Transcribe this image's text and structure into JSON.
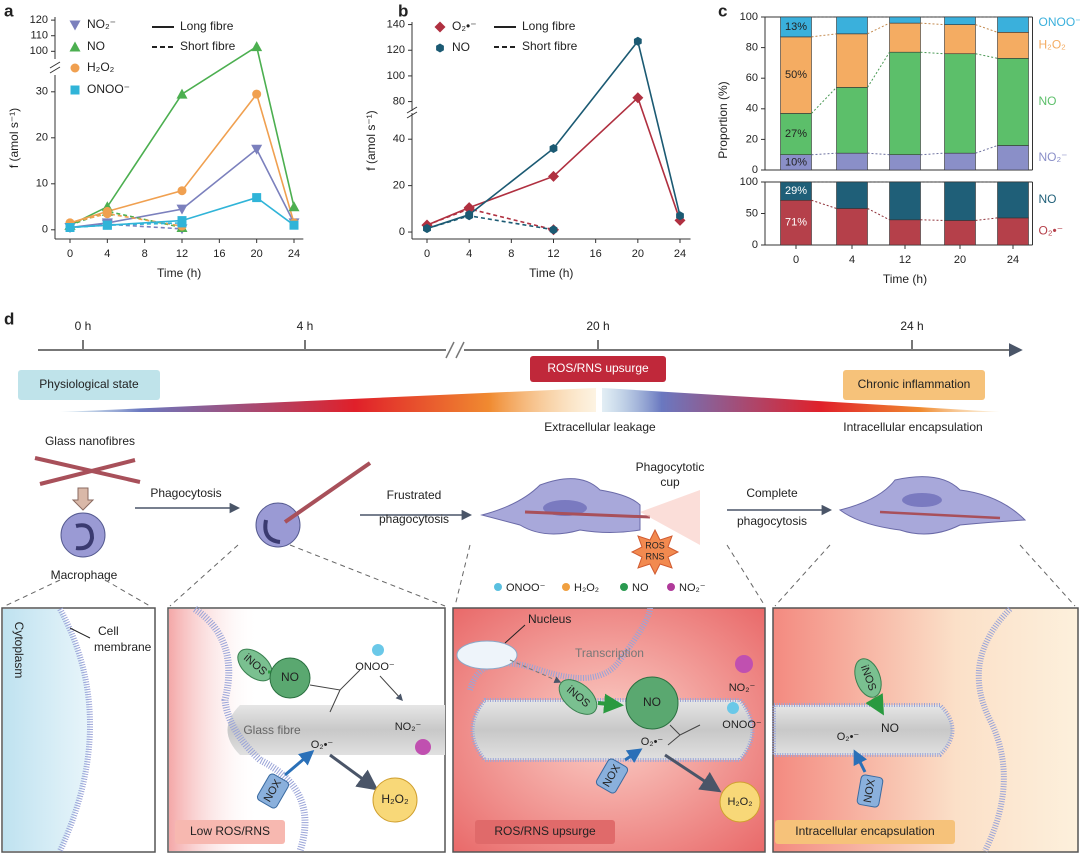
{
  "chart_data": [
    {
      "type": "line",
      "label": "a",
      "y_label": "f (amol s⁻¹)",
      "x_label": "Time (h)",
      "x": [
        0,
        4,
        12,
        20,
        24
      ],
      "xlim": [
        -1,
        25
      ],
      "xticks": [
        0,
        4,
        8,
        12,
        16,
        20,
        24
      ],
      "ylim": [
        -2,
        122
      ],
      "ybreak": [
        33,
        97
      ],
      "yticks": [
        0,
        10,
        20,
        30,
        100,
        110,
        120
      ],
      "line_styles": [
        "Long fibre",
        "Short fibre"
      ],
      "series": [
        {
          "name": "NO₂⁻",
          "color": "#7b80bd",
          "marker": "triangle-down",
          "values": [
            0.5,
            1.5,
            4.5,
            17.5,
            1.5
          ],
          "short_values": [
            0.5,
            1.2,
            0.2,
            null,
            null
          ]
        },
        {
          "name": "NO",
          "color": "#4caf50",
          "marker": "triangle-up",
          "values": [
            1,
            5,
            29.5,
            103,
            5
          ],
          "short_values": [
            1,
            4,
            0.5,
            null,
            null
          ]
        },
        {
          "name": "H₂O₂",
          "color": "#f0a050",
          "marker": "circle",
          "values": [
            1.5,
            4,
            8.5,
            29.5,
            1.5
          ],
          "short_values": [
            1.5,
            3.5,
            0.8,
            null,
            null
          ]
        },
        {
          "name": "ONOO⁻",
          "color": "#30b4d8",
          "marker": "square",
          "values": [
            0.5,
            1,
            2,
            7,
            1
          ],
          "short_values": [
            0.5,
            1,
            1.5,
            null,
            null
          ]
        }
      ]
    },
    {
      "type": "line",
      "label": "b",
      "y_label": "f (amol s⁻¹)",
      "x_label": "Time (h)",
      "x": [
        0,
        4,
        12,
        20,
        24
      ],
      "xlim": [
        -1,
        25
      ],
      "xticks": [
        0,
        4,
        8,
        12,
        16,
        20,
        24
      ],
      "ylim": [
        -3,
        142
      ],
      "ybreak": [
        50,
        75
      ],
      "yticks": [
        0,
        20,
        40,
        80,
        100,
        120,
        140
      ],
      "line_styles": [
        "Long fibre",
        "Short fibre"
      ],
      "series": [
        {
          "name": "O₂•⁻",
          "color": "#b03040",
          "marker": "diamond",
          "values": [
            3,
            10.5,
            24,
            83,
            5
          ],
          "short_values": [
            3,
            10,
            1,
            null,
            null
          ]
        },
        {
          "name": "NO",
          "color": "#1b5a73",
          "marker": "hexagon",
          "values": [
            1.5,
            7.5,
            36,
            127,
            7
          ],
          "short_values": [
            1.5,
            7,
            1,
            null,
            null
          ]
        }
      ]
    },
    {
      "type": "stacked_bar",
      "label": "c",
      "y_label": "Proportion (%)",
      "ylim": [
        0,
        100
      ],
      "yticks": [
        0,
        20,
        40,
        60,
        80,
        100
      ],
      "series": [
        {
          "name": "NO₂⁻",
          "color": "#8a8fc8",
          "values": [
            10,
            11,
            10,
            11,
            16
          ],
          "value_labels": [
            "10%",
            null,
            null,
            null,
            null
          ]
        },
        {
          "name": "NO",
          "color": "#5cbf6a",
          "values": [
            27,
            43,
            67,
            65,
            57
          ],
          "value_labels": [
            "27%",
            null,
            null,
            null,
            null
          ]
        },
        {
          "name": "H₂O₂",
          "color": "#f4ac62",
          "values": [
            50,
            35,
            19,
            19,
            17
          ],
          "value_labels": [
            "50%",
            null,
            null,
            null,
            null
          ]
        },
        {
          "name": "ONOO⁻",
          "color": "#3ab0dc",
          "values": [
            13,
            11,
            4,
            5,
            10
          ],
          "value_labels": [
            "13%",
            null,
            null,
            null,
            null
          ]
        }
      ]
    },
    {
      "type": "stacked_bar",
      "x_label": "Time (h)",
      "categories": [
        "0",
        "4",
        "12",
        "20",
        "24"
      ],
      "ylim": [
        0,
        100
      ],
      "yticks": [
        0,
        50,
        100
      ],
      "series": [
        {
          "name": "O₂•⁻",
          "color": "#b5404a",
          "values": [
            71,
            58,
            40,
            39,
            43
          ],
          "value_labels": [
            "71%",
            null,
            null,
            null,
            null
          ]
        },
        {
          "name": "NO",
          "color": "#1f5f78",
          "values": [
            29,
            42,
            60,
            61,
            57
          ],
          "value_labels": [
            "29%",
            null,
            null,
            null,
            null
          ]
        }
      ]
    }
  ],
  "diagram": {
    "label": "d",
    "timeline": [
      "0 h",
      "4 h",
      "20 h",
      "24 h"
    ],
    "states": {
      "physiological": "Physiological state",
      "upsurge": "ROS/RNS upsurge",
      "chronic": "Chronic inflammation",
      "leakage": "Extracellular leakage",
      "encapsulation": "Intracellular encapsulation"
    },
    "steps": {
      "nanofibres": "Glass nanofibres",
      "phagocytosis": "Phagocytosis",
      "frustrated": [
        "Frustrated",
        "phagocytosis"
      ],
      "cup": [
        "Phagocytotic",
        "cup"
      ],
      "complete": [
        "Complete",
        "phagocytosis"
      ],
      "macrophage": "Macrophage",
      "burst": [
        "ROS",
        "RNS"
      ]
    },
    "legend": [
      "ONOO⁻",
      "H₂O₂",
      "NO",
      "NO₂⁻"
    ],
    "panels": [
      {
        "cytoplasm": "Cytoplasm",
        "membrane": [
          "Cell",
          "membrane"
        ]
      },
      {
        "inos": "iNOS",
        "no": "NO",
        "onoo": "ONOO⁻",
        "fibre": "Glass fibre",
        "o2": "O₂•⁻",
        "no2": "NO₂⁻",
        "nox": "NOX",
        "h2o2": "H₂O₂",
        "caption": "Low ROS/RNS"
      },
      {
        "nucleus": "Nucleus",
        "transcription": "Transcription",
        "inos": "iNOS",
        "no": "NO",
        "no2": "NO₂⁻",
        "o2": "O₂•⁻",
        "onoo": "ONOO⁻",
        "nox": "NOX",
        "h2o2": "H₂O₂",
        "caption": "ROS/RNS upsurge"
      },
      {
        "inos": "iNOS",
        "no": "NO",
        "o2": "O₂•⁻",
        "nox": "NOX",
        "caption": "Intracellular encapsulation"
      }
    ]
  }
}
